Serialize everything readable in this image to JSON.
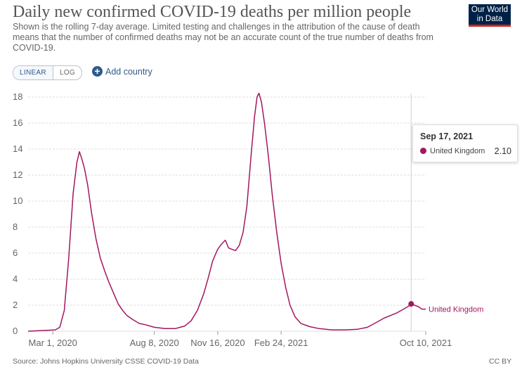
{
  "header": {
    "title": "Daily new confirmed COVID-19 deaths per million people",
    "subtitle": "Shown is the rolling 7-day average. Limited testing and challenges in the attribution of the cause of death means that the number of confirmed deaths may not be an accurate count of the true number of deaths from COVID-19.",
    "logo_line1": "Our World",
    "logo_line2": "in Data"
  },
  "controls": {
    "linear_label": "LINEAR",
    "log_label": "LOG",
    "add_country_label": "Add country",
    "active_scale": "linear"
  },
  "tooltip": {
    "date": "Sep 17, 2021",
    "entity": "United Kingdom",
    "value": "2.10"
  },
  "footer": {
    "source": "Source: Johns Hopkins University CSSE COVID-19 Data",
    "license": "CC BY"
  },
  "colors": {
    "series": "#a2175f",
    "grid": "#dddddd",
    "axis_text": "#666666",
    "hover_line": "#d0d0d0"
  },
  "chart_data": {
    "type": "line",
    "title": "Daily new confirmed COVID-19 deaths per million people",
    "xlabel": "",
    "ylabel": "",
    "ylim": [
      0,
      18
    ],
    "xlim": [
      "2020-01-22",
      "2021-10-10"
    ],
    "y_ticks": [
      0,
      2,
      4,
      6,
      8,
      10,
      12,
      14,
      16,
      18
    ],
    "x_ticks": [
      {
        "date": "2020-03-01",
        "label": "Mar 1, 2020"
      },
      {
        "date": "2020-08-08",
        "label": "Aug 8, 2020"
      },
      {
        "date": "2020-11-16",
        "label": "Nov 16, 2020"
      },
      {
        "date": "2021-02-24",
        "label": "Feb 24, 2021"
      },
      {
        "date": "2021-10-10",
        "label": "Oct 10, 2021"
      }
    ],
    "grid": "horizontal",
    "legend": "end-of-line label",
    "hover_date": "2021-09-17",
    "series": [
      {
        "name": "United Kingdom",
        "points": [
          [
            "2020-01-22",
            0
          ],
          [
            "2020-03-05",
            0.1
          ],
          [
            "2020-03-12",
            0.3
          ],
          [
            "2020-03-19",
            1.6
          ],
          [
            "2020-03-26",
            5.6
          ],
          [
            "2020-04-02",
            10.6
          ],
          [
            "2020-04-08",
            13.0
          ],
          [
            "2020-04-12",
            13.8
          ],
          [
            "2020-04-16",
            13.2
          ],
          [
            "2020-04-20",
            12.5
          ],
          [
            "2020-04-25",
            11.2
          ],
          [
            "2020-05-01",
            9.1
          ],
          [
            "2020-05-08",
            7.1
          ],
          [
            "2020-05-15",
            5.6
          ],
          [
            "2020-05-22",
            4.6
          ],
          [
            "2020-05-29",
            3.7
          ],
          [
            "2020-06-05",
            2.9
          ],
          [
            "2020-06-12",
            2.1
          ],
          [
            "2020-06-19",
            1.6
          ],
          [
            "2020-06-26",
            1.2
          ],
          [
            "2020-07-05",
            0.9
          ],
          [
            "2020-07-15",
            0.6
          ],
          [
            "2020-07-25",
            0.5
          ],
          [
            "2020-08-08",
            0.3
          ],
          [
            "2020-08-25",
            0.2
          ],
          [
            "2020-09-10",
            0.2
          ],
          [
            "2020-09-25",
            0.4
          ],
          [
            "2020-10-05",
            0.8
          ],
          [
            "2020-10-15",
            1.6
          ],
          [
            "2020-10-25",
            2.9
          ],
          [
            "2020-11-01",
            4.1
          ],
          [
            "2020-11-08",
            5.4
          ],
          [
            "2020-11-16",
            6.3
          ],
          [
            "2020-11-22",
            6.7
          ],
          [
            "2020-11-28",
            7.0
          ],
          [
            "2020-12-03",
            6.4
          ],
          [
            "2020-12-08",
            6.3
          ],
          [
            "2020-12-14",
            6.2
          ],
          [
            "2020-12-20",
            6.6
          ],
          [
            "2020-12-26",
            7.6
          ],
          [
            "2021-01-01",
            9.6
          ],
          [
            "2021-01-07",
            13.2
          ],
          [
            "2021-01-13",
            16.5
          ],
          [
            "2021-01-17",
            18.0
          ],
          [
            "2021-01-20",
            18.3
          ],
          [
            "2021-01-24",
            17.6
          ],
          [
            "2021-01-29",
            15.9
          ],
          [
            "2021-02-04",
            13.4
          ],
          [
            "2021-02-10",
            10.5
          ],
          [
            "2021-02-17",
            7.6
          ],
          [
            "2021-02-24",
            5.2
          ],
          [
            "2021-03-03",
            3.4
          ],
          [
            "2021-03-10",
            2.0
          ],
          [
            "2021-03-18",
            1.1
          ],
          [
            "2021-03-27",
            0.6
          ],
          [
            "2021-04-10",
            0.35
          ],
          [
            "2021-04-25",
            0.2
          ],
          [
            "2021-05-15",
            0.1
          ],
          [
            "2021-06-05",
            0.1
          ],
          [
            "2021-06-25",
            0.15
          ],
          [
            "2021-07-10",
            0.3
          ],
          [
            "2021-07-25",
            0.7
          ],
          [
            "2021-08-05",
            1.0
          ],
          [
            "2021-08-15",
            1.2
          ],
          [
            "2021-08-25",
            1.4
          ],
          [
            "2021-09-05",
            1.7
          ],
          [
            "2021-09-12",
            1.9
          ],
          [
            "2021-09-17",
            2.1
          ],
          [
            "2021-09-22",
            2.0
          ],
          [
            "2021-09-28",
            1.9
          ],
          [
            "2021-10-04",
            1.7
          ],
          [
            "2021-10-10",
            1.7
          ]
        ]
      }
    ]
  }
}
